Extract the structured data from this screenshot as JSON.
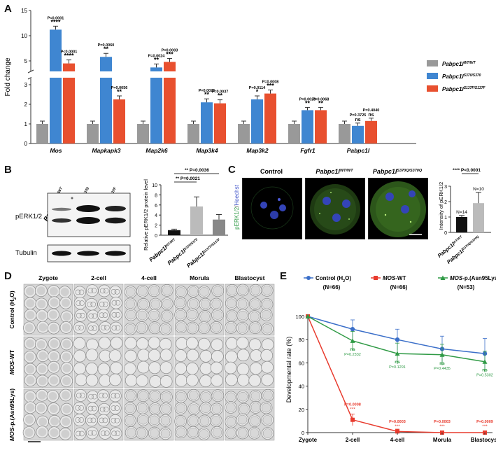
{
  "panel_labels": {
    "a": "A",
    "b": "B",
    "c": "C",
    "d": "D",
    "e": "E"
  },
  "chart_data": [
    {
      "id": "A",
      "type": "bar",
      "ylabel": "Fold change",
      "categories": [
        "Mos",
        "Mapkapk3",
        "Map2k6",
        "Map3k4",
        "Map3k2",
        "Fgfr1",
        "Pabpc1l"
      ],
      "series": [
        {
          "name": "Pabpc1l^WT/WT",
          "values": [
            1,
            1,
            1,
            1,
            1,
            1,
            1
          ]
        },
        {
          "name": "Pabpc1l^S370/S370",
          "values": [
            11.2,
            5.8,
            3.7,
            2.1,
            2.25,
            1.7,
            0.9
          ]
        },
        {
          "name": "Pabpc1l^S137F/S137F",
          "values": [
            4.5,
            2.25,
            4.8,
            2.05,
            2.55,
            1.7,
            1.15
          ]
        }
      ],
      "legend_labels": [
        "Pabpc1l",
        "Pabpc1l",
        "Pabpc1l"
      ],
      "legend_sup": [
        "WT/WT",
        "S370/S370",
        "S137F/S137F"
      ],
      "yticks_upper": [
        "15",
        "10",
        "5"
      ],
      "yticks_lower": [
        "3",
        "2",
        "1",
        "0"
      ],
      "stats": [
        {
          "p": "P<0.0001",
          "s": "****"
        },
        {
          "p": "P<0.0001",
          "s": "****"
        },
        {
          "p": "P=0.0060",
          "s": "**"
        },
        {
          "p": "P=0.0056",
          "s": "**"
        },
        {
          "p": "P=0.0024",
          "s": "**"
        },
        {
          "p": "P=0.0003",
          "s": "***"
        },
        {
          "p": "P=0.0025",
          "s": "**"
        },
        {
          "p": "P=0.0037",
          "s": "**"
        },
        {
          "p": "P=0.0114",
          "s": "*"
        },
        {
          "p": "P=0.0008",
          "s": "***"
        },
        {
          "p": "P=0.0023",
          "s": "**"
        },
        {
          "p": "P=0.0068",
          "s": "**"
        },
        {
          "p": "P=0.3725",
          "s": "ns"
        },
        {
          "p": "P=0.4040",
          "s": "ns"
        }
      ]
    },
    {
      "id": "B",
      "type": "bar",
      "ylabel": "Relative pERK1/2 protein level",
      "categories": [
        "Pabpc1l^WT/WT",
        "Pabpc1l^S370/S370",
        "Pabpc1l^S137F/S137F"
      ],
      "cat_base": [
        "Pabpc1l",
        "Pabpc1l",
        "Pabpc1l"
      ],
      "cat_sup": [
        "WT/WT",
        "S370/S370",
        "S137F/S137F"
      ],
      "values": [
        1.0,
        5.7,
        3.1
      ],
      "ylim": [
        0,
        10
      ],
      "yticks": [
        "10",
        "8",
        "6",
        "4",
        "2",
        "0"
      ],
      "stats": [
        "** P=0.0036",
        "** P=0.0021"
      ]
    },
    {
      "id": "C",
      "type": "bar",
      "ylabel": "Intensity of pERK1/2",
      "categories": [
        "Pabpc1l^WT/WT",
        "Pabpc1l^S370Q/S370Q"
      ],
      "cat_base": [
        "Pabpc1l",
        "Pabpc1l"
      ],
      "cat_sup": [
        "WT/WT",
        "S370Q/S370Q"
      ],
      "values": [
        1.0,
        1.9
      ],
      "n_labels": [
        "N=14",
        "N=10"
      ],
      "ylim": [
        0,
        3
      ],
      "yticks": [
        "3",
        "2",
        "1",
        "0"
      ],
      "stats": "**** P<0.0001"
    },
    {
      "id": "E",
      "type": "line",
      "ylabel": "Developmental rate (%)",
      "categories": [
        "Zygote",
        "2-cell",
        "4-cell",
        "Morula",
        "Blastocyst"
      ],
      "ylim": [
        0,
        100
      ],
      "yticks": [
        "100",
        "80",
        "60",
        "40",
        "20",
        "0"
      ],
      "series": [
        {
          "name": "Control (H₂O)",
          "n": "(N=66)",
          "color": "#3b6fc9",
          "values": [
            100,
            89,
            80,
            72,
            68
          ]
        },
        {
          "name": "MOS-WT",
          "n": "(N=66)",
          "color": "#e83b2e",
          "values": [
            100,
            11,
            1,
            0,
            0
          ]
        },
        {
          "name": "MOS-p.(Asn95Lys)",
          "n": "(N=53)",
          "color": "#2f9a45",
          "values": [
            100,
            79,
            68,
            67,
            61
          ]
        }
      ],
      "legend": [
        {
          "pre": "Control (H",
          "sub": "2",
          "post": "O)",
          "n": "(N=66)"
        },
        {
          "pre": "MOS",
          "post": "-WT",
          "n": "(N=66)"
        },
        {
          "pre": "MOS",
          "post": "-p.(Asn95Lys)",
          "n": "(N=53)"
        }
      ],
      "green_stats": [
        {
          "s": "ns",
          "p": "P=0.2332"
        },
        {
          "s": "ns",
          "p": "P=0.1291"
        },
        {
          "s": "ns",
          "p": "P=0.4435"
        },
        {
          "s": "ns",
          "p": "P=0.5302"
        }
      ],
      "red_stats": [
        {
          "p": "P=0.0008",
          "s": "***"
        },
        {
          "p": "P=0.0003",
          "s": "***"
        },
        {
          "p": "P=0.0003",
          "s": "***"
        },
        {
          "p": "P=0.0009",
          "s": "***"
        }
      ]
    }
  ],
  "blot": {
    "lane_base": [
      "Pabpc1l",
      "Pabpc1l",
      "Pabpc1l"
    ],
    "lane_sup": [
      "WT/WT",
      "S370/S370",
      "S137F/S137F"
    ],
    "band1_label": "pERK1/2",
    "band2_label": "Tubulin"
  },
  "immuno": {
    "titles_base": [
      "Control",
      "Pabpc1l",
      "Pabpc1l"
    ],
    "titles_sup": [
      "",
      "WT/WT",
      "S370Q/S370Q"
    ],
    "side_label_green": "pERK1/2",
    "side_label_blue": "Hoechst"
  },
  "embryo_panel": {
    "cols": [
      "Zygote",
      "2-cell",
      "4-cell",
      "Morula",
      "Blastocyst"
    ],
    "rows": [
      "Control (H2O)",
      "MOS-WT",
      "MOS-p.(Asn95Lys)"
    ]
  }
}
